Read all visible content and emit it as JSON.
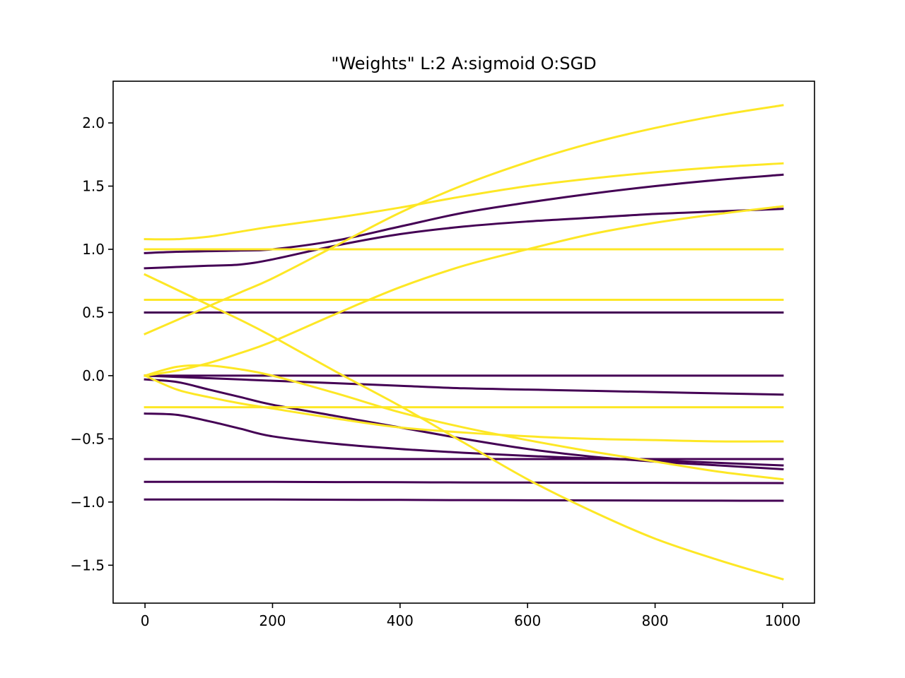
{
  "chart_data": {
    "type": "line",
    "title": "\"Weights\" L:2 A:sigmoid O:SGD",
    "xlabel": "",
    "ylabel": "",
    "xlim": [
      -50,
      1050
    ],
    "ylim": [
      -1.8,
      2.33
    ],
    "x_ticks": [
      0,
      200,
      400,
      600,
      800,
      1000
    ],
    "x_tick_labels": [
      "0",
      "200",
      "400",
      "600",
      "800",
      "1000"
    ],
    "y_ticks": [
      -1.5,
      -1.0,
      -0.5,
      0.0,
      0.5,
      1.0,
      1.5,
      2.0
    ],
    "y_tick_labels": [
      "−1.5",
      "−1.0",
      "−0.5",
      "0.0",
      "0.5",
      "1.0",
      "1.5",
      "2.0"
    ],
    "grid": false,
    "colors": {
      "purple": "#440154",
      "yellow": "#fde725"
    },
    "x": [
      0,
      50,
      100,
      150,
      200,
      300,
      400,
      500,
      600,
      700,
      800,
      900,
      1000
    ],
    "series": [
      {
        "color": "purple",
        "values": [
          0.97,
          0.98,
          0.985,
          0.99,
          1.0,
          1.07,
          1.18,
          1.29,
          1.37,
          1.44,
          1.5,
          1.55,
          1.59
        ]
      },
      {
        "color": "purple",
        "values": [
          0.85,
          0.86,
          0.87,
          0.88,
          0.92,
          1.03,
          1.12,
          1.18,
          1.22,
          1.25,
          1.28,
          1.3,
          1.32
        ]
      },
      {
        "color": "purple",
        "values": [
          0.5,
          0.5,
          0.5,
          0.5,
          0.5,
          0.5,
          0.5,
          0.5,
          0.5,
          0.5,
          0.5,
          0.5,
          0.5
        ]
      },
      {
        "color": "purple",
        "values": [
          0.0,
          0.0,
          0.0,
          0.0,
          0.0,
          0.0,
          0.0,
          0.0,
          0.0,
          0.0,
          0.0,
          0.0,
          0.0
        ]
      },
      {
        "color": "purple",
        "values": [
          0.0,
          -0.01,
          -0.02,
          -0.03,
          -0.04,
          -0.06,
          -0.08,
          -0.1,
          -0.11,
          -0.12,
          -0.13,
          -0.14,
          -0.15
        ]
      },
      {
        "color": "purple",
        "values": [
          -0.03,
          -0.05,
          -0.11,
          -0.17,
          -0.23,
          -0.32,
          -0.41,
          -0.5,
          -0.58,
          -0.64,
          -0.68,
          -0.71,
          -0.74
        ]
      },
      {
        "color": "purple",
        "values": [
          -0.3,
          -0.31,
          -0.36,
          -0.42,
          -0.48,
          -0.54,
          -0.58,
          -0.61,
          -0.635,
          -0.655,
          -0.67,
          -0.69,
          -0.71
        ]
      },
      {
        "color": "purple",
        "values": [
          -0.66,
          -0.66,
          -0.66,
          -0.66,
          -0.66,
          -0.66,
          -0.66,
          -0.66,
          -0.66,
          -0.66,
          -0.66,
          -0.66,
          -0.66
        ]
      },
      {
        "color": "purple",
        "values": [
          -0.84,
          -0.84,
          -0.84,
          -0.84,
          -0.84,
          -0.842,
          -0.843,
          -0.845,
          -0.846,
          -0.847,
          -0.848,
          -0.849,
          -0.85
        ]
      },
      {
        "color": "purple",
        "values": [
          -0.98,
          -0.98,
          -0.98,
          -0.98,
          -0.98,
          -0.982,
          -0.983,
          -0.985,
          -0.986,
          -0.987,
          -0.988,
          -0.989,
          -0.99
        ]
      },
      {
        "color": "yellow",
        "values": [
          1.08,
          1.08,
          1.1,
          1.14,
          1.18,
          1.25,
          1.33,
          1.42,
          1.5,
          1.56,
          1.61,
          1.65,
          1.68
        ]
      },
      {
        "color": "yellow",
        "values": [
          0.33,
          0.44,
          0.55,
          0.66,
          0.77,
          1.03,
          1.29,
          1.51,
          1.69,
          1.84,
          1.96,
          2.06,
          2.14
        ]
      },
      {
        "color": "yellow",
        "values": [
          0.0,
          0.04,
          0.1,
          0.18,
          0.27,
          0.49,
          0.7,
          0.87,
          1.0,
          1.12,
          1.21,
          1.28,
          1.34
        ]
      },
      {
        "color": "yellow",
        "values": [
          1.0,
          1.0,
          1.0,
          1.0,
          1.0,
          1.0,
          1.0,
          1.0,
          1.0,
          1.0,
          1.0,
          1.0,
          1.0
        ]
      },
      {
        "color": "yellow",
        "values": [
          0.6,
          0.6,
          0.6,
          0.6,
          0.6,
          0.6,
          0.6,
          0.6,
          0.6,
          0.6,
          0.6,
          0.6,
          0.6
        ]
      },
      {
        "color": "yellow",
        "values": [
          0.8,
          0.68,
          0.56,
          0.44,
          0.31,
          0.03,
          -0.24,
          -0.53,
          -0.82,
          -1.07,
          -1.29,
          -1.46,
          -1.61
        ]
      },
      {
        "color": "yellow",
        "values": [
          0.0,
          0.07,
          0.08,
          0.05,
          0.0,
          -0.14,
          -0.29,
          -0.41,
          -0.51,
          -0.6,
          -0.68,
          -0.76,
          -0.82
        ]
      },
      {
        "color": "yellow",
        "values": [
          0.0,
          -0.11,
          -0.17,
          -0.22,
          -0.26,
          -0.34,
          -0.41,
          -0.45,
          -0.48,
          -0.5,
          -0.51,
          -0.52,
          -0.52
        ]
      },
      {
        "color": "yellow",
        "values": [
          -0.25,
          -0.25,
          -0.25,
          -0.25,
          -0.25,
          -0.25,
          -0.25,
          -0.25,
          -0.25,
          -0.25,
          -0.25,
          -0.25,
          -0.25
        ]
      }
    ]
  }
}
